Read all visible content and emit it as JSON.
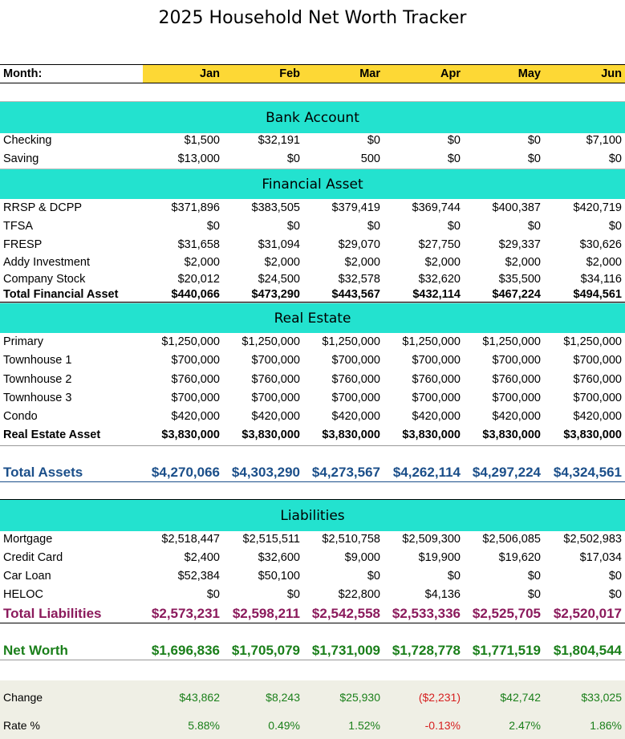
{
  "title": "2025 Household Net Worth Tracker",
  "header": {
    "label": "Month:",
    "months": [
      "Jan",
      "Feb",
      "Mar",
      "Apr",
      "May",
      "Jun"
    ]
  },
  "sections": {
    "bank": "Bank Account",
    "financial": "Financial Asset",
    "real_estate": "Real Estate",
    "liabilities": "Liabilities"
  },
  "rows": {
    "checking": {
      "label": "Checking",
      "values": [
        "$1,500",
        "$32,191",
        "$0",
        "$0",
        "$0",
        "$7,100"
      ]
    },
    "saving": {
      "label": "Saving",
      "values": [
        "$13,000",
        "$0",
        "500",
        "$0",
        "$0",
        "$0"
      ]
    },
    "rrsp": {
      "label": "RRSP & DCPP",
      "values": [
        "$371,896",
        "$383,505",
        "$379,419",
        "$369,744",
        "$400,387",
        "$420,719"
      ]
    },
    "tfsa": {
      "label": "TFSA",
      "values": [
        "$0",
        "$0",
        "$0",
        "$0",
        "$0",
        "$0"
      ]
    },
    "fresp": {
      "label": "FRESP",
      "values": [
        "$31,658",
        "$31,094",
        "$29,070",
        "$27,750",
        "$29,337",
        "$30,626"
      ]
    },
    "addy": {
      "label": "Addy Investment",
      "values": [
        "$2,000",
        "$2,000",
        "$2,000",
        "$2,000",
        "$2,000",
        "$2,000"
      ]
    },
    "company": {
      "label": "Company Stock",
      "values": [
        "$20,012",
        "$24,500",
        "$32,578",
        "$32,620",
        "$35,500",
        "$34,116"
      ]
    },
    "total_financial": {
      "label": "Total Financial Asset",
      "values": [
        "$440,066",
        "$473,290",
        "$443,567",
        "$432,114",
        "$467,224",
        "$494,561"
      ]
    },
    "primary": {
      "label": "Primary",
      "values": [
        "$1,250,000",
        "$1,250,000",
        "$1,250,000",
        "$1,250,000",
        "$1,250,000",
        "$1,250,000"
      ]
    },
    "townhouse1": {
      "label": "Townhouse 1",
      "values": [
        "$700,000",
        "$700,000",
        "$700,000",
        "$700,000",
        "$700,000",
        "$700,000"
      ]
    },
    "townhouse2": {
      "label": "Townhouse 2",
      "values": [
        "$760,000",
        "$760,000",
        "$760,000",
        "$760,000",
        "$760,000",
        "$760,000"
      ]
    },
    "townhouse3": {
      "label": "Townhouse 3",
      "values": [
        "$700,000",
        "$700,000",
        "$700,000",
        "$700,000",
        "$700,000",
        "$700,000"
      ]
    },
    "condo": {
      "label": "Condo",
      "values": [
        "$420,000",
        "$420,000",
        "$420,000",
        "$420,000",
        "$420,000",
        "$420,000"
      ]
    },
    "real_estate_asset": {
      "label": "Real Estate Asset",
      "values": [
        "$3,830,000",
        "$3,830,000",
        "$3,830,000",
        "$3,830,000",
        "$3,830,000",
        "$3,830,000"
      ]
    },
    "total_assets": {
      "label": "Total Assets",
      "values": [
        "$4,270,066",
        "$4,303,290",
        "$4,273,567",
        "$4,262,114",
        "$4,297,224",
        "$4,324,561"
      ]
    },
    "mortgage": {
      "label": "Mortgage",
      "values": [
        "$2,518,447",
        "$2,515,511",
        "$2,510,758",
        "$2,509,300",
        "$2,506,085",
        "$2,502,983"
      ]
    },
    "credit_card": {
      "label": "Credit Card",
      "values": [
        "$2,400",
        "$32,600",
        "$9,000",
        "$19,900",
        "$19,620",
        "$17,034"
      ]
    },
    "car_loan": {
      "label": "Car Loan",
      "values": [
        "$52,384",
        "$50,100",
        "$0",
        "$0",
        "$0",
        "$0"
      ]
    },
    "heloc": {
      "label": "HELOC",
      "values": [
        "$0",
        "$0",
        "$22,800",
        "$4,136",
        "$0",
        "$0"
      ]
    },
    "total_liabilities": {
      "label": "Total Liabilities",
      "values": [
        "$2,573,231",
        "$2,598,211",
        "$2,542,558",
        "$2,533,336",
        "$2,525,705",
        "$2,520,017"
      ]
    },
    "net_worth": {
      "label": "Net Worth",
      "values": [
        "$1,696,836",
        "$1,705,079",
        "$1,731,009",
        "$1,728,778",
        "$1,771,519",
        "$1,804,544"
      ]
    },
    "change": {
      "label": "Change",
      "values": [
        "$43,862",
        "$8,243",
        "$25,930",
        "($2,231)",
        "$42,742",
        "$33,025"
      ]
    },
    "rate": {
      "label": "Rate %",
      "values": [
        "5.88%",
        "0.49%",
        "1.52%",
        "-0.13%",
        "2.47%",
        "1.86%"
      ]
    }
  },
  "colors": {
    "header_fill": "#fdd835",
    "section_fill": "#23e2cf",
    "assets_text": "#1b4f8a",
    "liabilities_text": "#8b1a5c",
    "positive_text": "#1a7f1a",
    "negative_text": "#d62020"
  }
}
